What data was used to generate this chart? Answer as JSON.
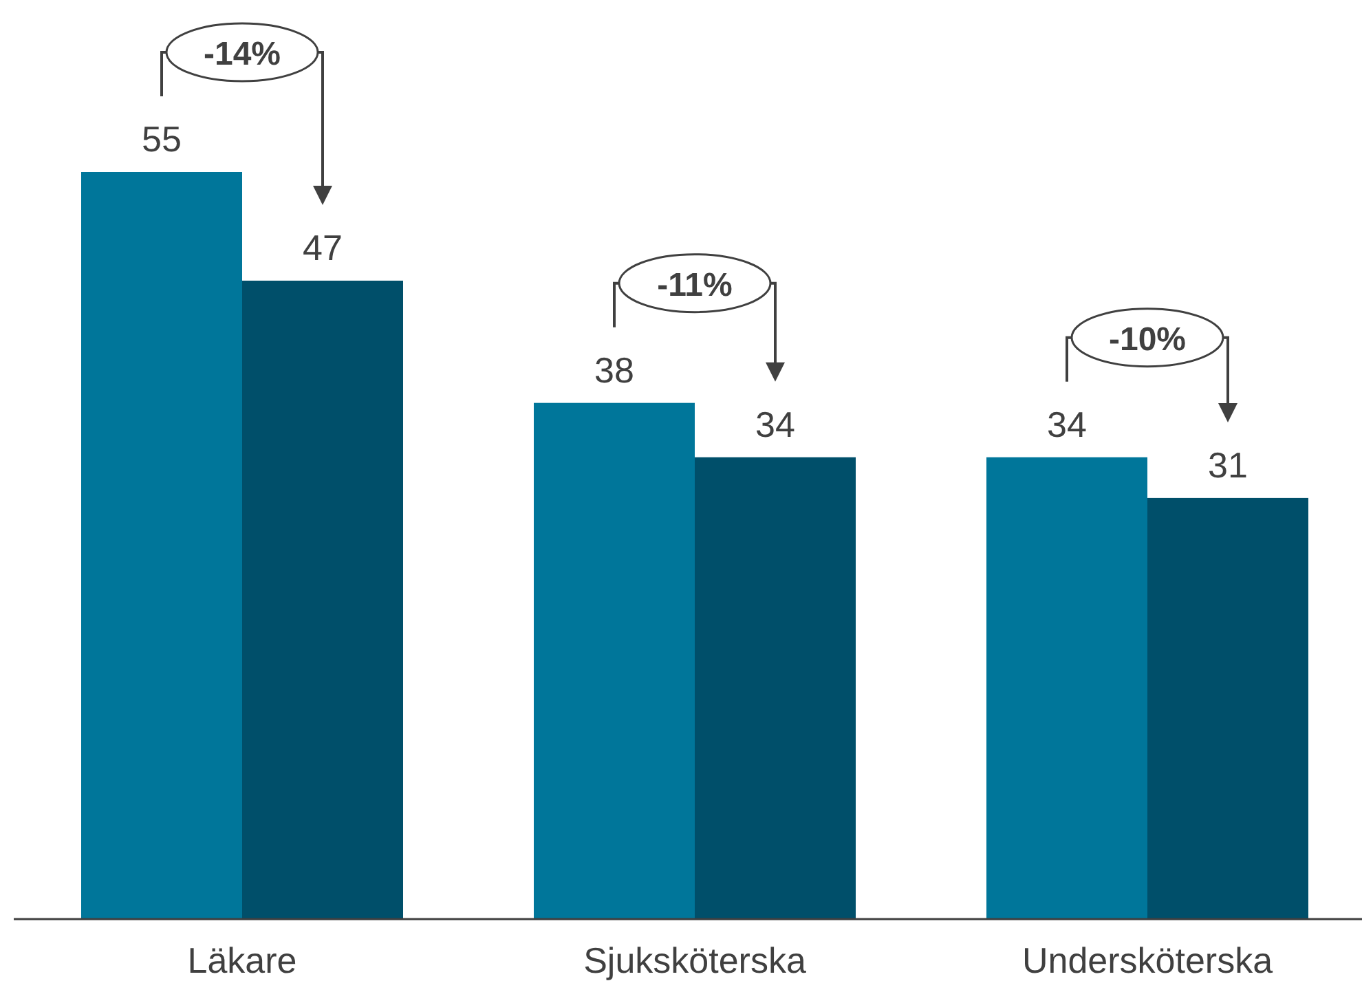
{
  "chart_data": {
    "type": "bar",
    "categories": [
      "Läkare",
      "Sjuksköterska",
      "Undersköterska"
    ],
    "series": [
      {
        "color": "#00769a",
        "values": [
          55,
          38,
          34
        ]
      },
      {
        "color": "#004f6a",
        "values": [
          47,
          34,
          31
        ]
      }
    ],
    "data_labels": true,
    "annotations": [
      "-14%",
      "-11%",
      "-10%"
    ]
  }
}
